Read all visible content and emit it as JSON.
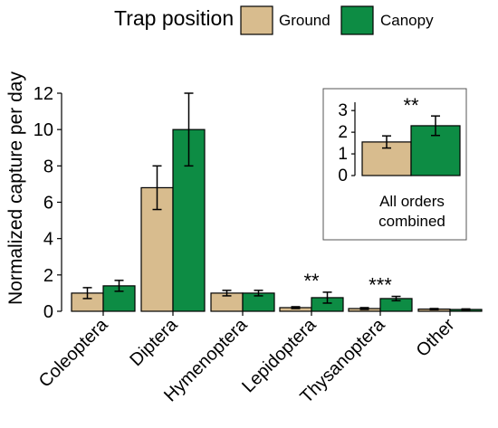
{
  "colors": {
    "ground": "#D8BC8E",
    "canopy": "#0D8C44"
  },
  "chart_data": [
    {
      "type": "bar",
      "ylabel": "Normalized capture per day",
      "ylim": [
        0,
        12
      ],
      "yticks": [
        "0",
        "2",
        "4",
        "6",
        "8",
        "10",
        "12"
      ],
      "legend_title": "Trap position",
      "legend_placement": "top",
      "categories": [
        "Coleoptera",
        "Diptera",
        "Hymenoptera",
        "Lepidoptera",
        "Thysanoptera",
        "Other"
      ],
      "series": [
        {
          "name": "Ground",
          "values": [
            1.0,
            6.8,
            1.0,
            0.2,
            0.15,
            0.12
          ],
          "error": [
            0.3,
            1.2,
            0.15,
            0.05,
            0.05,
            0.03
          ]
        },
        {
          "name": "Canopy",
          "values": [
            1.4,
            10.0,
            1.0,
            0.75,
            0.7,
            0.1
          ],
          "error": [
            0.3,
            2.0,
            0.15,
            0.3,
            0.12,
            0.03
          ]
        }
      ],
      "significance": [
        "",
        "",
        "",
        "**",
        "***",
        ""
      ],
      "grid": false
    },
    {
      "type": "bar",
      "xlabel": "All orders combined",
      "ylim": [
        0,
        3.3
      ],
      "yticks": [
        "0",
        "1",
        "2",
        "3"
      ],
      "series": [
        {
          "name": "Ground",
          "value": 1.55,
          "error": 0.28
        },
        {
          "name": "Canopy",
          "value": 2.3,
          "error": 0.45
        }
      ],
      "significance": "**",
      "placement": "top-right inset"
    }
  ]
}
